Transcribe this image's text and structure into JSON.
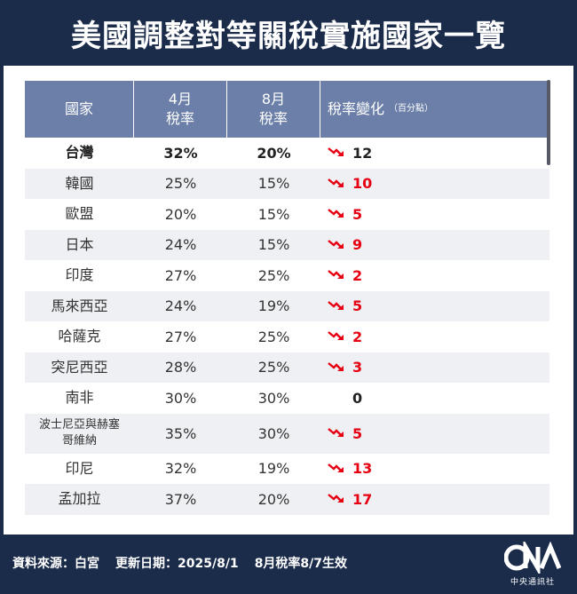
{
  "title": "美國調整對等關稅實施國家一覽",
  "table": {
    "headers": {
      "country": "國家",
      "april_l1": "4月",
      "april_l2": "稅率",
      "august_l1": "8月",
      "august_l2": "稅率",
      "change": "稅率變化",
      "change_unit": "（百分點）"
    },
    "rows": [
      {
        "country": "台灣",
        "april": "32%",
        "august": "20%",
        "change": "12"
      },
      {
        "country": "韓國",
        "april": "25%",
        "august": "15%",
        "change": "10"
      },
      {
        "country": "歐盟",
        "april": "20%",
        "august": "15%",
        "change": "5"
      },
      {
        "country": "日本",
        "april": "24%",
        "august": "15%",
        "change": "9"
      },
      {
        "country": "印度",
        "april": "27%",
        "august": "25%",
        "change": "2"
      },
      {
        "country": "馬來西亞",
        "april": "24%",
        "august": "19%",
        "change": "5"
      },
      {
        "country": "哈薩克",
        "april": "27%",
        "august": "25%",
        "change": "2"
      },
      {
        "country": "突尼西亞",
        "april": "28%",
        "august": "25%",
        "change": "3"
      },
      {
        "country": "南非",
        "april": "30%",
        "august": "30%",
        "change": "0"
      },
      {
        "country_l1": "波士尼亞與赫塞",
        "country_l2": "哥維納",
        "april": "35%",
        "august": "30%",
        "change": "5"
      },
      {
        "country": "印尼",
        "april": "32%",
        "august": "19%",
        "change": "13"
      },
      {
        "country": "孟加拉",
        "april": "37%",
        "august": "20%",
        "change": "17"
      }
    ]
  },
  "footer": {
    "source": "資料來源：白宮",
    "updated": "更新日期：2025/8/1",
    "effective": "8月稅率8/7生效",
    "logo_text": "中央通訊社"
  },
  "colors": {
    "navy": "#1b2b4a",
    "header_blue": "#6b7fa8",
    "red": "#e60012",
    "row_alt": "#eef0f4"
  },
  "icons": {
    "down_arrow": "trend-down-icon"
  }
}
